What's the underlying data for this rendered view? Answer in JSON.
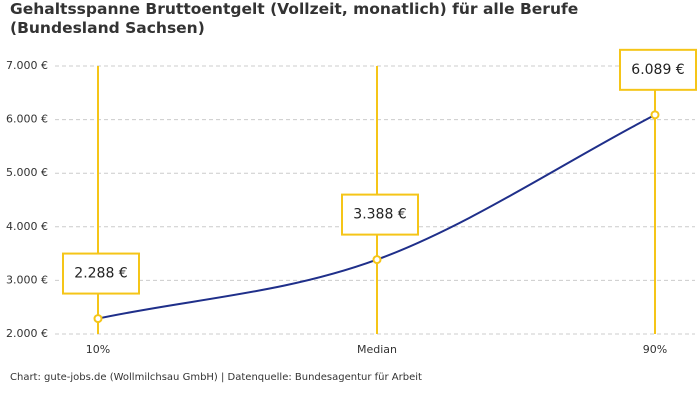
{
  "chart_data": {
    "type": "line",
    "title": "Gehaltsspanne Bruttoentgelt (Vollzeit, monatlich) für alle Berufe (Bundesland Sachsen)",
    "categories": [
      "10%",
      "Median",
      "90%"
    ],
    "series": [
      {
        "name": "Bruttoentgelt",
        "color": "#1f2f8a",
        "values": [
          2288,
          3388,
          6089
        ],
        "value_labels": [
          "2.288 €",
          "3.388 €",
          "6.089 €"
        ]
      }
    ],
    "marker_color": "#f5c518",
    "ylim": [
      2000,
      7000
    ],
    "yticks": [
      {
        "value": 2000,
        "label": "2.000 €"
      },
      {
        "value": 3000,
        "label": "3.000 €"
      },
      {
        "value": 4000,
        "label": "4.000 €"
      },
      {
        "value": 5000,
        "label": "5.000 €"
      },
      {
        "value": 6000,
        "label": "6.000 €"
      },
      {
        "value": 7000,
        "label": "7.000 €"
      }
    ],
    "grid": true,
    "source": "Chart: gute-jobs.de (Wollmilchsau GmbH) | Datenquelle: Bundesagentur für Arbeit"
  }
}
